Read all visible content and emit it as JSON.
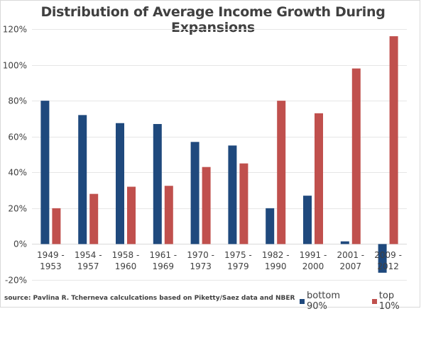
{
  "chart_data": {
    "type": "bar",
    "title": "Distribution of Average Income Growth During Expansions",
    "xlabel": "",
    "ylabel": "",
    "ylim": [
      -20,
      120
    ],
    "yticks": [
      -20,
      0,
      20,
      40,
      60,
      80,
      100,
      120
    ],
    "ytick_labels": [
      "-20%",
      "0%",
      "20%",
      "40%",
      "60%",
      "80%",
      "100%",
      "120%"
    ],
    "grid": true,
    "legend_position": "bottom-right",
    "categories": [
      [
        "1949 -",
        "1953"
      ],
      [
        "1954 -",
        "1957"
      ],
      [
        "1958 -",
        "1960"
      ],
      [
        "1961 -",
        "1969"
      ],
      [
        "1970 -",
        "1973"
      ],
      [
        "1975 -",
        "1979"
      ],
      [
        "1982 -",
        "1990"
      ],
      [
        "1991 -",
        "2000"
      ],
      [
        "2001 -",
        "2007"
      ],
      [
        "2009 -",
        "2012"
      ]
    ],
    "series": [
      {
        "name": "bottom 90%",
        "color": "#1f497d",
        "values": [
          80,
          72,
          67.5,
          67,
          57,
          55,
          20,
          27,
          1.5,
          -16
        ]
      },
      {
        "name": "top 10%",
        "color": "#c0504d",
        "values": [
          20,
          28,
          32,
          32.5,
          43,
          45,
          80,
          73,
          98,
          116
        ]
      }
    ],
    "annotations": [
      "source: Pavlina R. Tcherneva calculcations based on Piketty/Saez data and NBER"
    ]
  },
  "source_note": "source: Pavlina R. Tcherneva calculcations based on Piketty/Saez data and NBER",
  "legend": [
    {
      "label": "bottom 90%",
      "color": "#1f497d"
    },
    {
      "label": "top 10%",
      "color": "#c0504d"
    }
  ]
}
